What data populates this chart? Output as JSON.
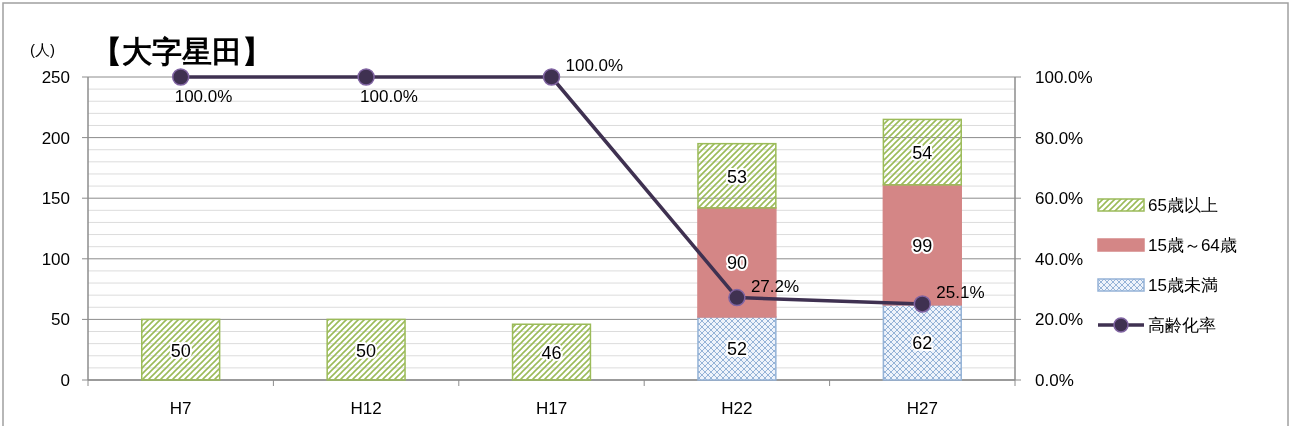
{
  "chart_data": {
    "type": "bar",
    "stacked": true,
    "title": "【大字星田】",
    "ylabel": "(人)",
    "categories": [
      "H7",
      "H12",
      "H17",
      "H22",
      "H27"
    ],
    "series": [
      {
        "name": "15歳未満",
        "color": "#95b3d7",
        "values": [
          null,
          null,
          null,
          52,
          62
        ]
      },
      {
        "name": "15歳～64歳",
        "color": "#d48686",
        "values": [
          null,
          null,
          null,
          90,
          99
        ]
      },
      {
        "name": "65歳以上",
        "color": "#9bbb59",
        "values": [
          50,
          50,
          46,
          53,
          54
        ]
      },
      {
        "name": "高齢化率",
        "type": "line",
        "axis": "y2",
        "color": "#3f3151",
        "marker": "circle",
        "values": [
          100,
          100,
          100,
          27.2,
          25.1
        ],
        "value_labels": [
          "100.0%",
          "100.0%",
          "100.0%",
          "27.2%",
          "25.1%"
        ]
      }
    ],
    "ylim": [
      0,
      250
    ],
    "yticks": [
      0,
      {
        "value": 10,
        "label": null
      },
      {
        "value": 20,
        "label": null
      },
      {
        "value": 30,
        "label": null
      },
      {
        "value": 40,
        "label": null
      },
      50,
      {
        "value": 60,
        "label": null
      },
      {
        "value": 70,
        "label": null
      },
      {
        "value": 80,
        "label": null
      },
      {
        "value": 90,
        "label": null
      },
      100,
      {
        "value": 110,
        "label": null
      },
      {
        "value": 120,
        "label": null
      },
      {
        "value": 130,
        "label": null
      },
      {
        "value": 140,
        "label": null
      },
      150,
      {
        "value": 160,
        "label": null
      },
      {
        "value": 170,
        "label": null
      },
      {
        "value": 180,
        "label": null
      },
      {
        "value": 190,
        "label": null
      },
      200,
      {
        "value": 210,
        "label": null
      },
      {
        "value": 220,
        "label": null
      },
      {
        "value": 230,
        "label": null
      },
      {
        "value": 240,
        "label": null
      },
      250
    ],
    "y2lim": [
      0,
      100
    ],
    "y2ticks": [
      {
        "value": 0,
        "label": "0.0%"
      },
      {
        "value": 20,
        "label": "20.0%"
      },
      {
        "value": 40,
        "label": "40.0%"
      },
      {
        "value": 60,
        "label": "60.0%"
      },
      {
        "value": 80,
        "label": "80.0%"
      },
      {
        "value": 100,
        "label": "100.0%"
      }
    ],
    "grid": "y",
    "legend": "right",
    "data_labels": true
  }
}
